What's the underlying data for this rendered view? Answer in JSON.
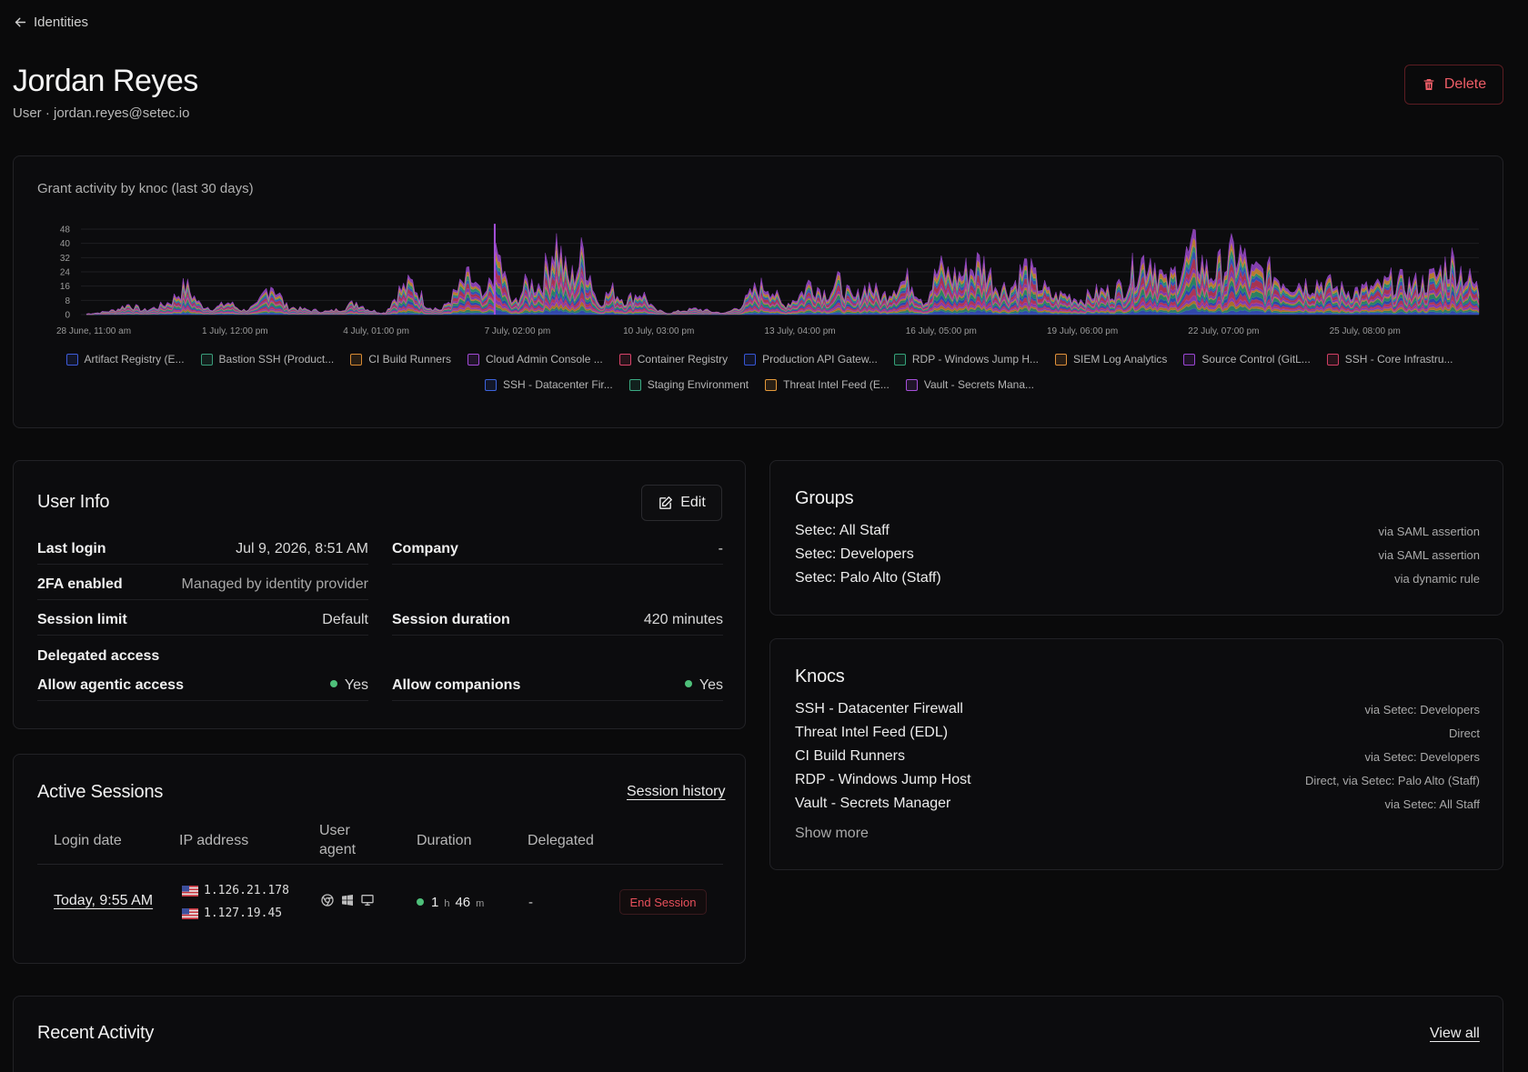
{
  "nav": {
    "back_label": "Identities"
  },
  "header": {
    "title": "Jordan Reyes",
    "subtitle": "User · jordan.reyes@setec.io",
    "delete_label": "Delete"
  },
  "colors": {
    "accent_red": "#ee5d67",
    "status_green": "#4ec07a"
  },
  "chart": {
    "title": "Grant activity by knoc (last 30 days)"
  },
  "chart_data": {
    "type": "area",
    "stacked": true,
    "title": "Grant activity by knoc (last 30 days)",
    "x_tick_labels": [
      "28 June, 11:00 am",
      "1 July, 12:00 pm",
      "4 July, 01:00 pm",
      "7 July, 02:00 pm",
      "10 July, 03:00 pm",
      "13 July, 04:00 pm",
      "16 July, 05:00 pm",
      "19 July, 06:00 pm",
      "22 July, 07:00 pm",
      "25 July, 08:00 pm"
    ],
    "y_ticks": [
      0,
      8,
      16,
      24,
      32,
      40,
      48
    ],
    "ylim": [
      0,
      48
    ],
    "grid": true,
    "legend_position": "bottom",
    "series": [
      {
        "name": "Artifact Registry (E...",
        "color": "#3d5bd9"
      },
      {
        "name": "Bastion SSH (Product...",
        "color": "#3a9d7b"
      },
      {
        "name": "CI Build Runners",
        "color": "#d98b32"
      },
      {
        "name": "Cloud Admin Console ...",
        "color": "#a24ad6"
      },
      {
        "name": "Container Registry",
        "color": "#d9436a"
      },
      {
        "name": "Production API Gatew...",
        "color": "#3656d6"
      },
      {
        "name": "RDP - Windows Jump H...",
        "color": "#35a37a"
      },
      {
        "name": "SIEM Log Analytics",
        "color": "#e0913a"
      },
      {
        "name": "Source Control (GitL...",
        "color": "#9b46d4"
      },
      {
        "name": "SSH - Core Infrastru...",
        "color": "#d13f64"
      },
      {
        "name": "SSH - Datacenter Fir...",
        "color": "#3d64de"
      },
      {
        "name": "Staging Environment",
        "color": "#3bab84"
      },
      {
        "name": "Threat Intel Feed (E...",
        "color": "#e59a3a"
      },
      {
        "name": "Vault - Secrets Mana...",
        "color": "#a64fda"
      }
    ],
    "profile": [
      [
        0,
        0.5
      ],
      [
        1,
        1.5
      ],
      [
        2,
        3
      ],
      [
        3,
        7
      ],
      [
        4,
        3
      ],
      [
        5,
        5
      ],
      [
        6,
        9
      ],
      [
        7,
        20
      ],
      [
        8,
        7
      ],
      [
        9,
        4
      ],
      [
        10,
        8
      ],
      [
        11,
        3
      ],
      [
        12,
        6
      ],
      [
        13,
        22
      ],
      [
        14,
        6
      ],
      [
        15,
        4
      ],
      [
        16,
        3
      ],
      [
        17,
        2
      ],
      [
        18,
        4
      ],
      [
        19,
        9
      ],
      [
        20,
        3
      ],
      [
        21,
        1
      ],
      [
        22,
        16
      ],
      [
        23,
        22
      ],
      [
        24,
        6
      ],
      [
        25,
        3
      ],
      [
        26,
        15
      ],
      [
        27,
        26
      ],
      [
        28,
        9
      ],
      [
        29,
        38
      ],
      [
        30,
        6
      ],
      [
        31,
        22
      ],
      [
        32,
        20
      ],
      [
        33,
        49
      ],
      [
        34,
        22
      ],
      [
        35,
        44
      ],
      [
        36,
        7
      ],
      [
        37,
        16
      ],
      [
        38,
        10
      ],
      [
        39,
        16
      ],
      [
        40,
        3
      ],
      [
        41,
        1
      ],
      [
        42,
        3
      ],
      [
        43,
        4
      ],
      [
        44,
        2
      ],
      [
        45,
        1
      ],
      [
        46,
        6
      ],
      [
        47,
        16
      ],
      [
        48,
        20
      ],
      [
        49,
        6
      ],
      [
        50,
        12
      ],
      [
        51,
        22
      ],
      [
        52,
        14
      ],
      [
        53,
        22
      ],
      [
        54,
        10
      ],
      [
        55,
        20
      ],
      [
        56,
        11
      ],
      [
        57,
        22
      ],
      [
        58,
        24
      ],
      [
        59,
        8
      ],
      [
        60,
        30
      ],
      [
        61,
        26
      ],
      [
        62,
        30
      ],
      [
        63,
        34
      ],
      [
        64,
        20
      ],
      [
        65,
        18
      ],
      [
        66,
        32
      ],
      [
        67,
        20
      ],
      [
        68,
        12
      ],
      [
        69,
        14
      ],
      [
        70,
        10
      ],
      [
        71,
        14
      ],
      [
        72,
        16
      ],
      [
        73,
        20
      ],
      [
        74,
        34
      ],
      [
        75,
        38
      ],
      [
        76,
        20
      ],
      [
        77,
        34
      ],
      [
        78,
        42
      ],
      [
        79,
        26
      ],
      [
        80,
        34
      ],
      [
        81,
        44
      ],
      [
        82,
        26
      ],
      [
        83,
        28
      ],
      [
        84,
        26
      ],
      [
        85,
        22
      ],
      [
        86,
        20
      ],
      [
        87,
        22
      ],
      [
        88,
        18
      ],
      [
        89,
        16
      ],
      [
        90,
        16
      ],
      [
        91,
        18
      ],
      [
        92,
        24
      ],
      [
        93,
        20
      ],
      [
        94,
        20
      ],
      [
        95,
        26
      ],
      [
        96,
        38
      ],
      [
        97,
        26
      ],
      [
        98,
        16
      ]
    ]
  },
  "user_info": {
    "heading": "User Info",
    "edit_label": "Edit",
    "last_login_label": "Last login",
    "last_login_value": "Jul 9, 2026, 8:51 AM",
    "company_label": "Company",
    "company_value": "-",
    "twofa_label": "2FA enabled",
    "twofa_value": "Managed by identity provider",
    "session_limit_label": "Session limit",
    "session_limit_value": "Default",
    "session_duration_label": "Session duration",
    "session_duration_value": "420 minutes",
    "delegated_label": "Delegated access",
    "agentic_label": "Allow agentic access",
    "agentic_value": "Yes",
    "companions_label": "Allow companions",
    "companions_value": "Yes"
  },
  "groups": {
    "heading": "Groups",
    "items": [
      {
        "name": "Setec: All Staff",
        "via": "via SAML assertion"
      },
      {
        "name": "Setec: Developers",
        "via": "via SAML assertion"
      },
      {
        "name": "Setec: Palo Alto (Staff)",
        "via": "via dynamic rule"
      }
    ]
  },
  "knocs": {
    "heading": "Knocs",
    "items": [
      {
        "name": "SSH - Datacenter Firewall",
        "via": "via Setec: Developers"
      },
      {
        "name": "Threat Intel Feed (EDL)",
        "via": "Direct"
      },
      {
        "name": "CI Build Runners",
        "via": "via Setec: Developers"
      },
      {
        "name": "RDP - Windows Jump Host",
        "via": "Direct, via Setec: Palo Alto (Staff)"
      },
      {
        "name": "Vault - Secrets Manager",
        "via": "via Setec: All Staff"
      }
    ],
    "show_more": "Show more"
  },
  "sessions": {
    "heading": "Active Sessions",
    "history_link": "Session history",
    "columns": {
      "login_date": "Login date",
      "ip": "IP address",
      "ua_line1": "User",
      "ua_line2": "agent",
      "duration": "Duration",
      "delegated": "Delegated"
    },
    "rows": [
      {
        "login_date": "Today, 9:55 AM",
        "ip1": "1.126.21.178",
        "ip2": "1.127.19.45",
        "user_agent_icons": [
          "chrome-icon",
          "windows-icon",
          "desktop-icon"
        ],
        "duration_hours": "1",
        "duration_h_unit": "h",
        "duration_minutes": "46",
        "duration_m_unit": "m",
        "delegated": "-",
        "end_label": "End Session"
      }
    ]
  },
  "recent": {
    "heading": "Recent Activity",
    "view_all": "View all"
  }
}
